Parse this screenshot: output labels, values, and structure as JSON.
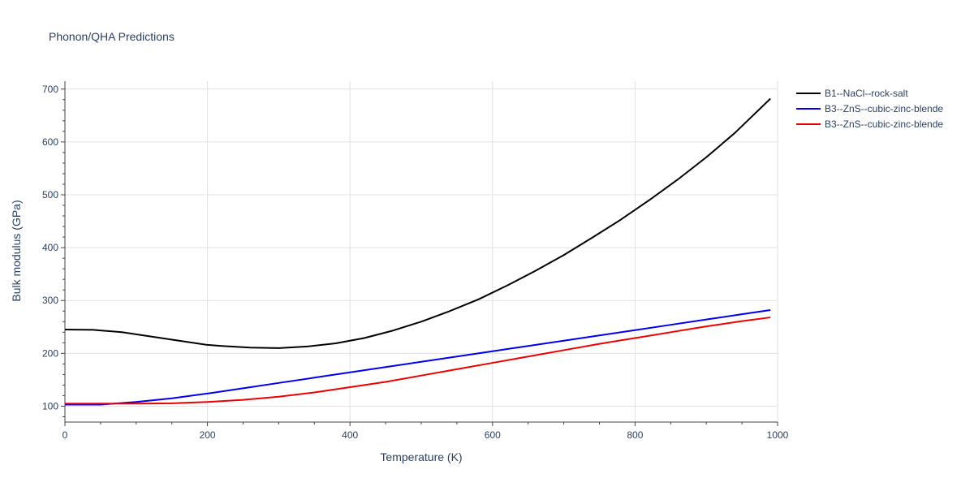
{
  "chart_data": {
    "type": "line",
    "title": "Phonon/QHA Predictions",
    "xlabel": "Temperature (K)",
    "ylabel": "Bulk modulus (GPa)",
    "xlim": [
      0,
      1000
    ],
    "ylim": [
      70,
      715
    ],
    "x_ticks": [
      0,
      200,
      400,
      600,
      800,
      1000
    ],
    "y_ticks": [
      100,
      200,
      300,
      400,
      500,
      600,
      700
    ],
    "grid": true,
    "legend_position": "top-right",
    "series": [
      {
        "name": "B1--NaCl--rock-salt",
        "color": "#000000",
        "x": [
          0,
          40,
          80,
          120,
          160,
          200,
          220,
          260,
          300,
          340,
          380,
          420,
          460,
          500,
          540,
          580,
          620,
          660,
          700,
          740,
          780,
          820,
          860,
          900,
          940,
          990
        ],
        "y": [
          245,
          244.5,
          240,
          232,
          224,
          216,
          214,
          211,
          210,
          213,
          219,
          229,
          243,
          260,
          280,
          302,
          328,
          356,
          386,
          419,
          453,
          490,
          529,
          571,
          617,
          682
        ]
      },
      {
        "name": "B3--ZnS--cubic-zinc-blende",
        "color": "#0000ee",
        "x": [
          0,
          50,
          100,
          150,
          200,
          250,
          300,
          350,
          400,
          450,
          500,
          550,
          600,
          650,
          700,
          750,
          800,
          850,
          900,
          950,
          990
        ],
        "y": [
          103,
          103,
          108,
          115,
          124,
          134,
          144,
          154,
          164,
          174,
          184,
          194,
          204,
          214,
          224,
          234,
          244,
          254,
          264,
          274,
          282
        ]
      },
      {
        "name": "B3--ZnS--cubic-zinc-blende",
        "color": "#ee0000",
        "x": [
          0,
          50,
          100,
          150,
          200,
          250,
          300,
          350,
          400,
          450,
          500,
          550,
          600,
          650,
          700,
          750,
          800,
          850,
          900,
          950,
          990
        ],
        "y": [
          105,
          105,
          105,
          105.5,
          108,
          112,
          118,
          126,
          136,
          146,
          158,
          170,
          182,
          194,
          206,
          218,
          229,
          240,
          251,
          261,
          268
        ]
      }
    ]
  }
}
